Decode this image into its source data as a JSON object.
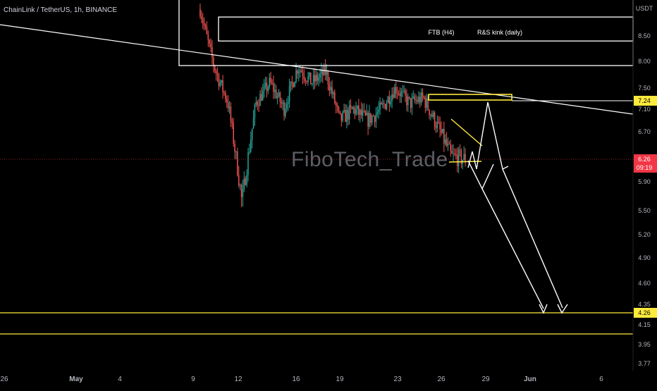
{
  "header": {
    "symbol_line": "ChainLink / TetherUS, 1h, BINANCE"
  },
  "watermark": {
    "text": "FiboTech_Trade"
  },
  "price_axis": {
    "currency": "USDT",
    "ticks": [
      {
        "label": "8.50",
        "value": 8.5
      },
      {
        "label": "8.00",
        "value": 8.0
      },
      {
        "label": "7.50",
        "value": 7.5
      },
      {
        "label": "7.10",
        "value": 7.1
      },
      {
        "label": "6.70",
        "value": 6.7
      },
      {
        "label": "5.90",
        "value": 5.9
      },
      {
        "label": "5.50",
        "value": 5.5
      },
      {
        "label": "5.20",
        "value": 5.2
      },
      {
        "label": "4.90",
        "value": 4.9
      },
      {
        "label": "4.60",
        "value": 4.6
      },
      {
        "label": "4.35",
        "value": 4.35
      },
      {
        "label": "4.15",
        "value": 4.15
      },
      {
        "label": "3.95",
        "value": 3.95
      },
      {
        "label": "3.77",
        "value": 3.77
      }
    ],
    "tags": {
      "target": {
        "label": "7.24",
        "value": 7.24,
        "color": "#ffeb3b"
      },
      "current_price": {
        "label": "6.26",
        "value": 6.26,
        "color": "#f23645"
      },
      "countdown": "09:19",
      "support": {
        "label": "4.26",
        "value": 4.26,
        "color": "#ffeb3b"
      }
    }
  },
  "time_axis": {
    "ticks": [
      "26",
      "May",
      "4",
      "9",
      "12",
      "16",
      "19",
      "23",
      "26",
      "29",
      "Jun",
      "6"
    ]
  },
  "annotations": {
    "ftb": "FTB (H4)",
    "rs_kink": "R&S kink (daily)"
  },
  "chart_data": {
    "type": "candlestick",
    "title": "ChainLink / TetherUS, 1h, BINANCE",
    "ylabel": "USDT",
    "ylim": [
      3.7,
      9.1
    ],
    "x_ticks": [
      "26",
      "May",
      "4",
      "9",
      "12",
      "16",
      "19",
      "23",
      "26",
      "29",
      "Jun",
      "6"
    ],
    "series": [
      {
        "name": "ChainLink / TetherUS",
        "close_path": [
          [
            "May 9",
            9.0
          ],
          [
            "May 10",
            7.9
          ],
          [
            "May 11",
            7.2
          ],
          [
            "May 12",
            5.6
          ],
          [
            "May 13",
            7.2
          ],
          [
            "May 14",
            7.6
          ],
          [
            "May 15",
            7.1
          ],
          [
            "May 16",
            7.9
          ],
          [
            "May 17",
            7.6
          ],
          [
            "May 18",
            7.8
          ],
          [
            "May 19",
            6.9
          ],
          [
            "May 20",
            7.1
          ],
          [
            "May 21",
            6.9
          ],
          [
            "May 22",
            7.1
          ],
          [
            "May 23",
            7.5
          ],
          [
            "May 24",
            7.2
          ],
          [
            "May 25",
            7.3
          ],
          [
            "May 26",
            6.8
          ],
          [
            "May 27",
            6.3
          ],
          [
            "May 28",
            6.26
          ]
        ]
      }
    ],
    "levels": [
      {
        "name": "FTB (H4)",
        "value": 8.85
      },
      {
        "name": "R&S kink (daily)",
        "value": 8.4
      },
      {
        "value": 7.92
      },
      {
        "value": 7.24
      },
      {
        "value": 6.26
      },
      {
        "value": 4.26
      },
      {
        "value": 4.05
      }
    ],
    "current_price": 6.26,
    "projection": [
      7.24,
      5.85,
      4.26
    ]
  }
}
